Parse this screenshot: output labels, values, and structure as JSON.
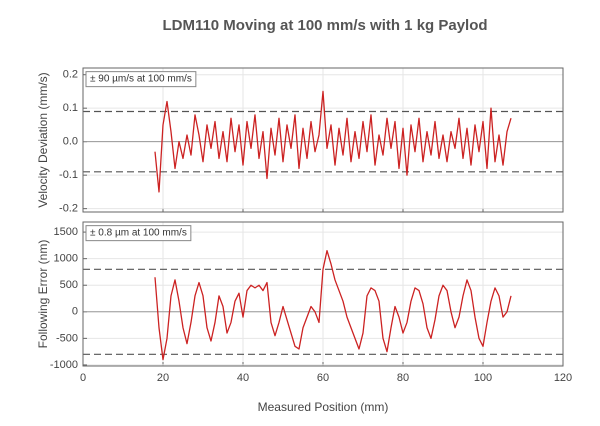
{
  "chart_data": [
    {
      "type": "line",
      "title": "LDM110 Moving at 100 mm/s with 1 kg Paylod",
      "ylabel": "Velocity Deviation (mm/s)",
      "annotation": "± 90 µm/s at 100 mm/s",
      "bounds": [
        -0.09,
        0.09
      ],
      "grid": true,
      "xlim": [
        0,
        120
      ],
      "xticks": [
        0,
        20,
        40,
        60,
        80,
        100,
        120
      ],
      "ylim": [
        -0.21,
        0.22
      ],
      "yticks": [
        -0.2,
        -0.1,
        {
          "value": 0,
          "label": "0.0"
        },
        0.1,
        0.2
      ],
      "series": [
        {
          "color": "#cc2222",
          "x": [
            18,
            19,
            20,
            21,
            22,
            23,
            24,
            25,
            26,
            27,
            28,
            29,
            30,
            31,
            32,
            33,
            34,
            35,
            36,
            37,
            38,
            39,
            40,
            41,
            42,
            43,
            44,
            45,
            46,
            47,
            48,
            49,
            50,
            51,
            52,
            53,
            54,
            55,
            56,
            57,
            58,
            59,
            60,
            61,
            62,
            63,
            64,
            65,
            66,
            67,
            68,
            69,
            70,
            71,
            72,
            73,
            74,
            75,
            76,
            77,
            78,
            79,
            80,
            81,
            82,
            83,
            84,
            85,
            86,
            87,
            88,
            89,
            90,
            91,
            92,
            93,
            94,
            95,
            96,
            97,
            98,
            99,
            100,
            101,
            102,
            103,
            104,
            105,
            106,
            107
          ],
          "values": [
            -0.03,
            -0.15,
            0.05,
            0.12,
            0.03,
            -0.08,
            0.0,
            -0.05,
            0.02,
            -0.04,
            0.08,
            0.02,
            -0.06,
            0.05,
            -0.02,
            0.06,
            -0.05,
            0.03,
            -0.06,
            0.07,
            -0.03,
            0.05,
            -0.07,
            0.06,
            -0.02,
            0.08,
            -0.05,
            0.03,
            -0.11,
            0.04,
            -0.04,
            0.07,
            -0.06,
            0.05,
            -0.02,
            0.08,
            -0.08,
            0.04,
            -0.05,
            0.06,
            -0.03,
            0.02,
            0.15,
            -0.02,
            0.05,
            -0.07,
            0.04,
            -0.04,
            0.07,
            -0.06,
            0.03,
            -0.05,
            0.06,
            -0.03,
            0.08,
            -0.07,
            0.02,
            -0.04,
            0.07,
            -0.02,
            0.06,
            -0.08,
            0.04,
            -0.1,
            0.05,
            -0.03,
            0.07,
            -0.06,
            0.03,
            -0.04,
            0.06,
            -0.05,
            0.02,
            -0.06,
            0.03,
            -0.02,
            0.07,
            -0.05,
            0.04,
            -0.07,
            0.05,
            -0.03,
            0.06,
            -0.08,
            0.1,
            -0.06,
            0.02,
            -0.07,
            0.03,
            0.07
          ]
        }
      ]
    },
    {
      "type": "line",
      "ylabel": "Following Error (nm)",
      "xlabel": "Measured Position (mm)",
      "annotation": "± 0.8 µm at 100 mm/s",
      "bounds": [
        -800,
        800
      ],
      "grid": true,
      "xlim": [
        0,
        120
      ],
      "xticks": [
        0,
        20,
        40,
        60,
        80,
        100,
        120
      ],
      "ylim": [
        -1020,
        1690
      ],
      "yticks": [
        -1000,
        -500,
        0,
        500,
        1000,
        1500
      ],
      "series": [
        {
          "color": "#cc2222",
          "x": [
            18,
            19,
            20,
            21,
            22,
            23,
            24,
            25,
            26,
            27,
            28,
            29,
            30,
            31,
            32,
            33,
            34,
            35,
            36,
            37,
            38,
            39,
            40,
            41,
            42,
            43,
            44,
            45,
            46,
            47,
            48,
            49,
            50,
            51,
            52,
            53,
            54,
            55,
            56,
            57,
            58,
            59,
            60,
            61,
            62,
            63,
            64,
            65,
            66,
            67,
            68,
            69,
            70,
            71,
            72,
            73,
            74,
            75,
            76,
            77,
            78,
            79,
            80,
            81,
            82,
            83,
            84,
            85,
            86,
            87,
            88,
            89,
            90,
            91,
            92,
            93,
            94,
            95,
            96,
            97,
            98,
            99,
            100,
            101,
            102,
            103,
            104,
            105,
            106,
            107
          ],
          "values": [
            650,
            -300,
            -900,
            -500,
            300,
            600,
            200,
            -300,
            -600,
            -200,
            300,
            550,
            300,
            -300,
            -550,
            -200,
            300,
            100,
            -400,
            -200,
            200,
            350,
            -100,
            400,
            500,
            450,
            500,
            400,
            550,
            -200,
            -450,
            -200,
            100,
            -150,
            -400,
            -650,
            -700,
            -300,
            -100,
            100,
            0,
            -200,
            800,
            1150,
            900,
            600,
            400,
            200,
            -100,
            -300,
            -500,
            -700,
            -400,
            300,
            450,
            400,
            200,
            -500,
            -750,
            -300,
            100,
            -100,
            -400,
            -200,
            200,
            450,
            400,
            150,
            -300,
            -500,
            -150,
            300,
            500,
            400,
            0,
            -300,
            -100,
            300,
            600,
            400,
            -100,
            -500,
            -650,
            -200,
            200,
            450,
            300,
            -100,
            0,
            300
          ]
        }
      ]
    }
  ]
}
